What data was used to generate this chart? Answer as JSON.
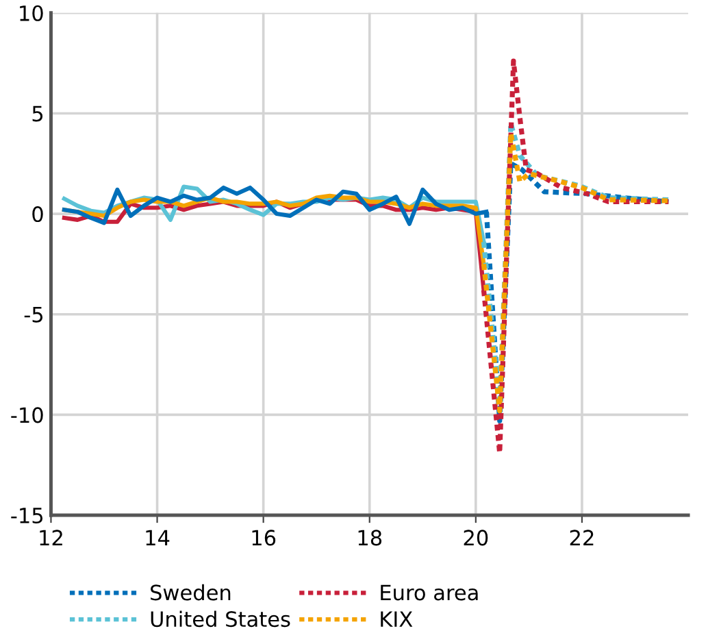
{
  "chart_data": {
    "type": "line",
    "xlim": [
      12,
      24
    ],
    "xticks": [
      12,
      14,
      16,
      18,
      20,
      22
    ],
    "ylim": [
      -15,
      10
    ],
    "yticks": [
      -15,
      -10,
      -5,
      0,
      5,
      10
    ],
    "grid": true,
    "legend": "bottom",
    "marker": "none",
    "series": [
      {
        "color": "#c8203a",
        "line_style": "solid",
        "x": [
          12.25,
          12.5,
          12.75,
          13.0,
          13.25,
          13.5,
          13.75,
          14.0,
          14.25,
          14.5,
          14.75,
          15.0,
          15.25,
          15.5,
          15.75,
          16.0,
          16.25,
          16.5,
          16.75,
          17.0,
          17.25,
          17.5,
          17.75,
          18.0,
          18.25,
          18.5,
          18.75,
          19.0,
          19.25,
          19.5,
          19.75,
          20.0,
          20.15
        ],
        "values": [
          -0.2,
          -0.3,
          -0.1,
          -0.4,
          -0.4,
          0.5,
          0.3,
          0.3,
          0.4,
          0.2,
          0.4,
          0.5,
          0.6,
          0.4,
          0.4,
          0.4,
          0.6,
          0.3,
          0.5,
          0.7,
          0.7,
          0.7,
          0.7,
          0.4,
          0.4,
          0.2,
          0.2,
          0.3,
          0.2,
          0.3,
          0.2,
          0.1,
          -3.8
        ]
      },
      {
        "color": "#5bc2d6",
        "line_style": "solid",
        "x": [
          12.25,
          12.5,
          12.75,
          13.0,
          13.25,
          13.5,
          13.75,
          14.0,
          14.25,
          14.5,
          14.75,
          15.0,
          15.25,
          15.5,
          15.75,
          16.0,
          16.25,
          16.5,
          16.75,
          17.0,
          17.25,
          17.5,
          17.75,
          18.0,
          18.25,
          18.5,
          18.75,
          19.0,
          19.25,
          19.5,
          19.75,
          20.0,
          20.15
        ],
        "values": [
          0.75,
          0.4,
          0.15,
          0.05,
          0.4,
          0.6,
          0.8,
          0.7,
          -0.3,
          1.35,
          1.25,
          0.6,
          0.7,
          0.5,
          0.2,
          -0.05,
          0.5,
          0.5,
          0.6,
          0.6,
          0.8,
          0.7,
          0.8,
          0.7,
          0.8,
          0.7,
          0.3,
          0.8,
          0.6,
          0.6,
          0.6,
          0.6,
          -1.4
        ]
      },
      {
        "color": "#f4a300",
        "line_style": "solid",
        "x": [
          12.25,
          12.5,
          12.75,
          13.0,
          13.25,
          13.5,
          13.75,
          14.0,
          14.25,
          14.5,
          14.75,
          15.0,
          15.25,
          15.5,
          15.75,
          16.0,
          16.25,
          16.5,
          16.75,
          17.0,
          17.25,
          17.5,
          17.75,
          18.0,
          18.25,
          18.5,
          18.75,
          19.0,
          19.25,
          19.5,
          19.75,
          20.0,
          20.15
        ],
        "values": [
          0.2,
          0.1,
          0.0,
          -0.1,
          0.3,
          0.6,
          0.7,
          0.6,
          0.6,
          0.4,
          0.6,
          0.8,
          0.6,
          0.6,
          0.5,
          0.5,
          0.6,
          0.4,
          0.5,
          0.8,
          0.9,
          0.8,
          0.8,
          0.6,
          0.6,
          0.5,
          0.3,
          0.5,
          0.4,
          0.4,
          0.4,
          0.3,
          -2.5
        ]
      },
      {
        "color": "#006fb9",
        "line_style": "solid",
        "x": [
          12.25,
          12.5,
          12.75,
          13.0,
          13.25,
          13.5,
          13.75,
          14.0,
          14.25,
          14.5,
          14.75,
          15.0,
          15.25,
          15.5,
          15.75,
          16.0,
          16.25,
          16.5,
          16.75,
          17.0,
          17.25,
          17.5,
          17.75,
          18.0,
          18.25,
          18.5,
          18.75,
          19.0,
          19.25,
          19.5,
          19.75,
          20.0,
          20.2
        ],
        "values": [
          0.2,
          0.1,
          -0.2,
          -0.45,
          1.2,
          -0.1,
          0.4,
          0.8,
          0.6,
          0.9,
          0.7,
          0.8,
          1.3,
          1.0,
          1.3,
          0.7,
          0.0,
          -0.1,
          0.3,
          0.7,
          0.5,
          1.1,
          1.0,
          0.2,
          0.5,
          0.85,
          -0.5,
          1.2,
          0.5,
          0.2,
          0.3,
          0.0,
          0.1
        ]
      },
      {
        "name": "Sweden",
        "color": "#006fb9",
        "line_style": "dotted",
        "x": [
          20.2,
          20.45,
          20.66,
          20.87,
          21.29,
          22.1,
          22.8,
          23.63
        ],
        "values": [
          0.1,
          -10.3,
          2.5,
          2.2,
          1.1,
          1.0,
          0.8,
          0.6
        ]
      },
      {
        "name": "United States",
        "color": "#5bc2d6",
        "line_style": "dotted",
        "x": [
          20.15,
          20.45,
          20.66,
          20.83,
          21.16,
          21.95,
          22.5,
          23.63
        ],
        "values": [
          -1.4,
          -9.5,
          4.5,
          2.9,
          1.9,
          1.4,
          0.8,
          0.7
        ]
      },
      {
        "name": "Euro area",
        "color": "#c8203a",
        "line_style": "dotted",
        "x": [
          20.15,
          20.45,
          20.71,
          20.83,
          20.95,
          21.16,
          21.62,
          22.1,
          22.5,
          23.63
        ],
        "values": [
          -3.8,
          -11.9,
          7.6,
          4.8,
          2.2,
          2.0,
          1.3,
          1.0,
          0.6,
          0.6
        ]
      },
      {
        "name": "KIX",
        "color": "#f4a300",
        "line_style": "dotted",
        "x": [
          20.15,
          20.45,
          20.66,
          20.83,
          21.0,
          21.6,
          22.0,
          22.5,
          23.63
        ],
        "values": [
          -2.5,
          -9.8,
          4.0,
          1.6,
          2.0,
          1.6,
          1.3,
          0.7,
          0.65
        ]
      }
    ]
  }
}
